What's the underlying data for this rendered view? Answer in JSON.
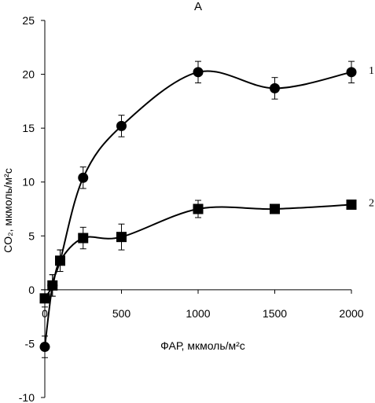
{
  "chart_data": {
    "type": "line",
    "title": "A",
    "xlabel": "ФАР, мкмоль/м²с",
    "ylabel": "CO₂, мкмоль/м²с",
    "xlim": [
      0,
      2000
    ],
    "ylim": [
      -10,
      25
    ],
    "x_ticks": [
      "0",
      "500",
      "1000",
      "1500",
      "2000"
    ],
    "y_ticks": [
      "-10",
      "-5",
      "0",
      "5",
      "10",
      "15",
      "20",
      "25"
    ],
    "grid": false,
    "legend": "none",
    "series": [
      {
        "name": "1",
        "marker": "circle",
        "color": "#000000",
        "x": [
          0,
          50,
          100,
          250,
          500,
          1000,
          1500,
          2000
        ],
        "y": [
          -5.3,
          0.4,
          2.7,
          10.4,
          15.2,
          20.2,
          18.7,
          20.2
        ],
        "err": [
          1.0,
          1.0,
          1.0,
          1.0,
          1.0,
          1.0,
          1.0,
          1.0
        ]
      },
      {
        "name": "2",
        "marker": "square",
        "color": "#000000",
        "x": [
          0,
          50,
          100,
          250,
          500,
          1000,
          1500,
          2000
        ],
        "y": [
          -0.8,
          0.4,
          2.7,
          4.8,
          4.9,
          7.5,
          7.5,
          7.9
        ],
        "err": [
          0.8,
          1.0,
          1.0,
          1.0,
          1.2,
          0.8,
          0.3,
          0.3
        ]
      }
    ]
  }
}
